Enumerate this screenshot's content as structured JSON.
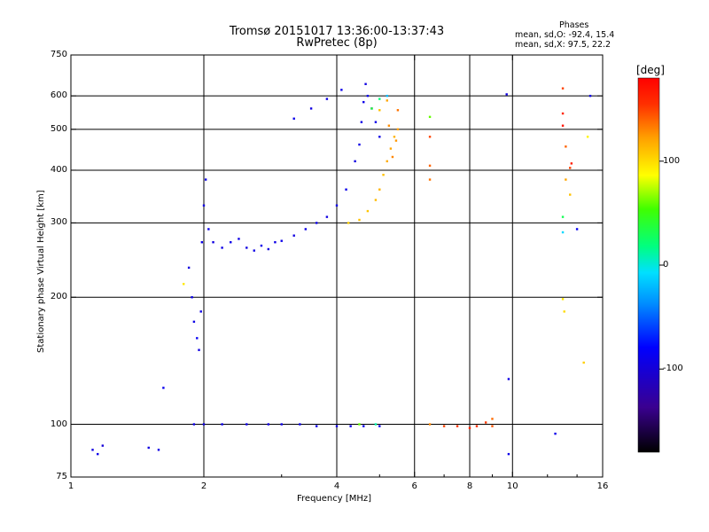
{
  "title": "Tromsø 20151017 13:36:00-13:37:43",
  "subtitle": "RwPretec (8p)",
  "stats": {
    "heading": "Phases",
    "line_o": "mean, sd,O: -92.4, 15.4",
    "line_x": "mean, sd,X:  97.5, 22.2"
  },
  "colorbar": {
    "unit": "[deg]",
    "ticks": [
      "100",
      "0",
      "-100"
    ],
    "tick_values": [
      100,
      0,
      -100
    ],
    "range": [
      -180,
      180
    ]
  },
  "chart_data": {
    "type": "scatter",
    "xlabel": "Frequency [MHz]",
    "ylabel": "Stationary phase Virtual Height [km]",
    "xscale": "log",
    "yscale": "log",
    "xlim": [
      1,
      16
    ],
    "ylim": [
      75,
      750
    ],
    "xticks": [
      {
        "value": 1,
        "label": "1"
      },
      {
        "value": 2,
        "label": "2"
      },
      {
        "value": 4,
        "label": "4"
      },
      {
        "value": 6,
        "label": "6"
      },
      {
        "value": 8,
        "label": "8"
      },
      {
        "value": 10,
        "label": "10"
      },
      {
        "value": 16,
        "label": "16"
      }
    ],
    "yticks": [
      {
        "value": 75,
        "label": "75"
      },
      {
        "value": 100,
        "label": "100"
      },
      {
        "value": 200,
        "label": "200"
      },
      {
        "value": 300,
        "label": "300"
      },
      {
        "value": 400,
        "label": "400"
      },
      {
        "value": 500,
        "label": "500"
      },
      {
        "value": 600,
        "label": "600"
      },
      {
        "value": 750,
        "label": "750"
      }
    ],
    "grid_x": [
      2,
      4,
      6,
      8,
      10
    ],
    "grid_y": [
      100,
      200,
      300,
      400,
      500,
      600
    ],
    "series": [
      {
        "values": [
          [
            1.12,
            87,
            -95
          ],
          [
            1.15,
            85,
            -90
          ],
          [
            1.18,
            89,
            -100
          ],
          [
            1.5,
            88,
            -95
          ],
          [
            1.58,
            87,
            -92
          ],
          [
            1.62,
            122,
            -88
          ],
          [
            1.85,
            235,
            -95
          ],
          [
            1.88,
            200,
            -90
          ],
          [
            1.9,
            175,
            -92
          ],
          [
            1.93,
            160,
            -85
          ],
          [
            1.95,
            150,
            -95
          ],
          [
            1.97,
            185,
            -92
          ],
          [
            1.98,
            270,
            -90
          ],
          [
            2.0,
            330,
            -95
          ],
          [
            2.02,
            380,
            -92
          ],
          [
            2.05,
            290,
            -90
          ],
          [
            2.1,
            270,
            -95
          ],
          [
            2.2,
            262,
            -92
          ],
          [
            2.3,
            270,
            -90
          ],
          [
            2.4,
            275,
            -92
          ],
          [
            2.5,
            262,
            -95
          ],
          [
            2.6,
            258,
            -92
          ],
          [
            2.7,
            265,
            -90
          ],
          [
            2.8,
            260,
            -95
          ],
          [
            2.9,
            270,
            -92
          ],
          [
            3.0,
            272,
            -90
          ],
          [
            3.2,
            280,
            -95
          ],
          [
            3.4,
            290,
            -92
          ],
          [
            3.6,
            300,
            -90
          ],
          [
            3.8,
            310,
            -95
          ],
          [
            4.0,
            330,
            -92
          ],
          [
            4.2,
            360,
            -90
          ],
          [
            4.4,
            420,
            -95
          ],
          [
            4.55,
            520,
            -92
          ],
          [
            4.6,
            580,
            -90
          ],
          [
            4.65,
            640,
            -95
          ],
          [
            4.5,
            460,
            -92
          ],
          [
            4.7,
            600,
            -90
          ],
          [
            4.8,
            560,
            -92
          ],
          [
            4.9,
            520,
            -90
          ],
          [
            5.0,
            480,
            -92
          ],
          [
            3.2,
            530,
            -90
          ],
          [
            3.5,
            560,
            -95
          ],
          [
            3.8,
            590,
            -92
          ],
          [
            4.1,
            620,
            -90
          ],
          [
            1.9,
            100,
            -92
          ],
          [
            2.0,
            100,
            -95
          ],
          [
            2.2,
            100,
            -90
          ],
          [
            2.5,
            100,
            -92
          ],
          [
            2.8,
            100,
            -95
          ],
          [
            3.0,
            100,
            -92
          ],
          [
            3.3,
            100,
            -90
          ],
          [
            3.6,
            99,
            -92
          ],
          [
            4.0,
            99,
            -95
          ],
          [
            4.3,
            99,
            -92
          ],
          [
            4.6,
            99,
            -90
          ],
          [
            5.0,
            99,
            -92
          ],
          [
            9.7,
            605,
            -95
          ],
          [
            9.8,
            128,
            -92
          ],
          [
            9.8,
            85,
            -90
          ],
          [
            12.5,
            95,
            -90
          ],
          [
            14.0,
            290,
            -85
          ],
          [
            15.0,
            600,
            -92
          ]
        ]
      },
      {
        "values": [
          [
            1.8,
            215,
            95
          ],
          [
            4.25,
            300,
            105
          ],
          [
            4.5,
            305,
            110
          ],
          [
            4.7,
            320,
            108
          ],
          [
            4.9,
            340,
            112
          ],
          [
            5.0,
            360,
            115
          ],
          [
            5.1,
            390,
            110
          ],
          [
            5.2,
            420,
            118
          ],
          [
            5.3,
            450,
            120
          ],
          [
            5.4,
            480,
            115
          ],
          [
            5.5,
            500,
            122
          ],
          [
            5.35,
            430,
            130
          ],
          [
            5.45,
            470,
            125
          ],
          [
            5.25,
            510,
            128
          ],
          [
            5.5,
            555,
            135
          ],
          [
            5.2,
            585,
            120
          ],
          [
            5.0,
            555,
            110
          ],
          [
            6.5,
            480,
            148
          ],
          [
            6.5,
            535,
            60
          ],
          [
            6.5,
            410,
            140
          ],
          [
            6.5,
            380,
            135
          ],
          [
            6.5,
            100,
            130
          ],
          [
            7.0,
            99,
            150
          ],
          [
            7.5,
            99,
            155
          ],
          [
            8.0,
            98,
            160
          ],
          [
            8.3,
            99,
            158
          ],
          [
            8.7,
            101,
            152
          ],
          [
            9.0,
            99,
            145
          ],
          [
            9.0,
            103,
            138
          ],
          [
            13.0,
            625,
            150
          ],
          [
            13.0,
            545,
            160
          ],
          [
            13.0,
            510,
            170
          ],
          [
            13.2,
            455,
            140
          ],
          [
            13.5,
            405,
            150
          ],
          [
            13.2,
            380,
            120
          ],
          [
            13.5,
            350,
            110
          ],
          [
            13.6,
            415,
            165
          ],
          [
            14.5,
            140,
            105
          ],
          [
            14.8,
            480,
            90
          ],
          [
            13.0,
            198,
            95
          ],
          [
            13.1,
            185,
            100
          ],
          [
            4.8,
            560,
            40
          ],
          [
            5.0,
            590,
            20
          ],
          [
            5.2,
            600,
            -20
          ],
          [
            4.9,
            100,
            10
          ],
          [
            4.5,
            100,
            60
          ],
          [
            13.0,
            310,
            30
          ],
          [
            13.0,
            285,
            -10
          ]
        ]
      }
    ]
  }
}
